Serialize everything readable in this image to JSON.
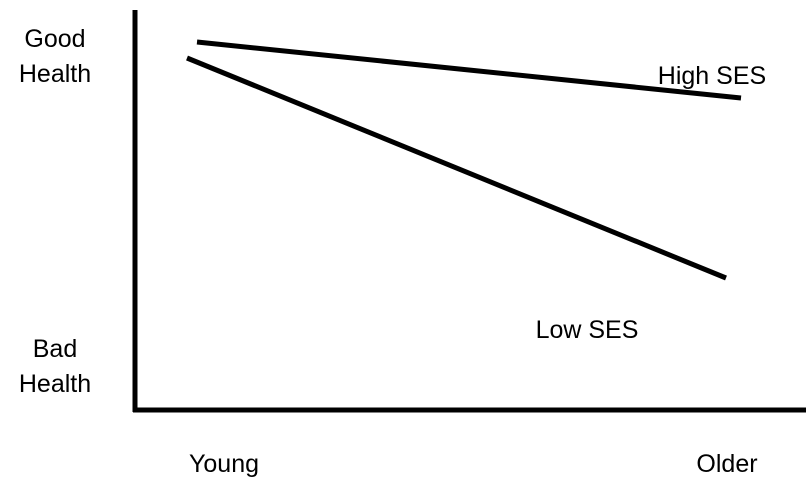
{
  "chart_data": {
    "type": "line",
    "title": "",
    "x_categories": [
      "Young",
      "Older"
    ],
    "y_scale": {
      "top_label": [
        "Good",
        "Health"
      ],
      "bottom_label": [
        "Bad",
        "Health"
      ]
    },
    "series": [
      {
        "name": "High SES",
        "color": "#000000",
        "values": [
          0.92,
          0.78
        ]
      },
      {
        "name": "Low SES",
        "color": "#000000",
        "values": [
          0.88,
          0.33
        ]
      }
    ],
    "ylim": [
      0,
      1
    ],
    "grid": false,
    "legend": "direct-labels"
  }
}
